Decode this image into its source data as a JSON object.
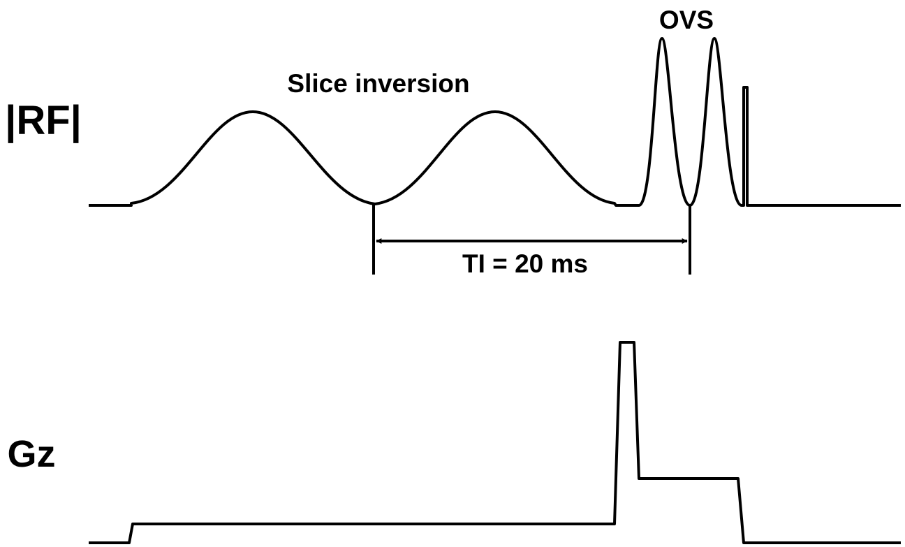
{
  "labels": {
    "rf": "|RF|",
    "gz": "Gz",
    "slice_inversion": "Slice inversion",
    "ovs": "OVS",
    "ti": "TI = 20 ms"
  }
}
